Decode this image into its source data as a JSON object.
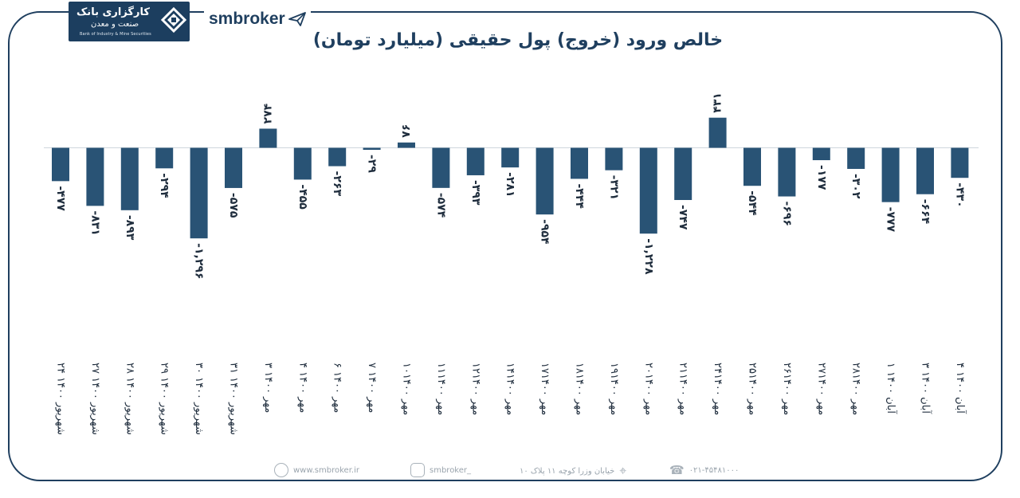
{
  "header": {
    "logo_fa": "کارگزاری بانک",
    "logo_fa_2": "صنعت و معدن",
    "logo_en": "Bank of Industry & Mine Securities",
    "brand": "smbroker"
  },
  "colors": {
    "bar": "#295375",
    "frame": "#1f3f5f",
    "axis": "#cfd6dc",
    "text": "#1f2d3d"
  },
  "chart_data": {
    "type": "bar",
    "title": "خالص ورود (خروج) پول حقیقی (میلیارد تومان)",
    "categories": [
      "۲۴ شهریور ۱۴۰۰",
      "۲۷ شهریور ۱۴۰۰",
      "۲۸ شهریور ۱۴۰۰",
      "۲۹ شهریور ۱۴۰۰",
      "۳۰ شهریور ۱۴۰۰",
      "۳۱ شهریور ۱۴۰۰",
      "۳ مهر ۱۴۰۰",
      "۴ مهر ۱۴۰۰",
      "۶ مهر ۱۴۰۰",
      "۷ مهر ۱۴۰۰",
      "۱۰مهر ۱۴۰۰",
      "۱۱مهر ۱۴۰۰",
      "۱۲مهر ۱۴۰۰",
      "۱۴مهر ۱۴۰۰",
      "۱۷مهر ۱۴۰۰",
      "۱۸مهر ۱۴۰۰",
      "۱۹مهر ۱۴۰۰",
      "۲۰مهر ۱۴۰۰",
      "۲۱مهر ۱۴۰۰",
      "۲۴مهر ۱۴۰۰",
      "۲۵مهر ۱۴۰۰",
      "۲۶مهر ۱۴۰۰",
      "۲۷مهر ۱۴۰۰",
      "۲۸مهر ۱۴۰۰",
      "۱ آبان ۱۴۰۰",
      "۳ آبان ۱۴۰۰",
      "۴ آبان ۱۴۰۰"
    ],
    "values": [
      -477,
      -831,
      -893,
      -294,
      -1296,
      -575,
      274,
      -455,
      -263,
      -29,
      76,
      -574,
      -393,
      -281,
      -954,
      -444,
      -321,
      -1228,
      -747,
      431,
      -544,
      -696,
      -177,
      -302,
      -777,
      -664,
      -430
    ],
    "labels": [
      "-۴۷۷",
      "-۸۳۱",
      "-۸۹۳",
      "-۲۹۴",
      "-۱,۲۹۶",
      "-۵۷۵",
      "۲۷۴",
      "-۴۵۵",
      "-۲۶۳",
      "-۲۹",
      "۷۶",
      "-۵۷۴",
      "-۳۹۳",
      "-۲۸۱",
      "-۹۵۴",
      "-۴۴۴",
      "-۳۲۱",
      "-۱,۲۲۸",
      "-۷۴۷",
      "۴۳۱",
      "-۵۴۴",
      "-۶۹۶",
      "-۱۷۷",
      "-۳۰۲",
      "-۷۷۷",
      "-۶۶۴",
      "-۴۳۰"
    ],
    "xlabel": "",
    "ylabel": "",
    "grid": false,
    "legend": "none"
  },
  "footer": {
    "website": "www.smbroker.ir",
    "instagram": "smbroker_",
    "address": "خیابان وزرا کوچه ۱۱ پلاک ۱۰",
    "phone": "۰۲۱-۴۵۴۸۱۰۰۰"
  }
}
